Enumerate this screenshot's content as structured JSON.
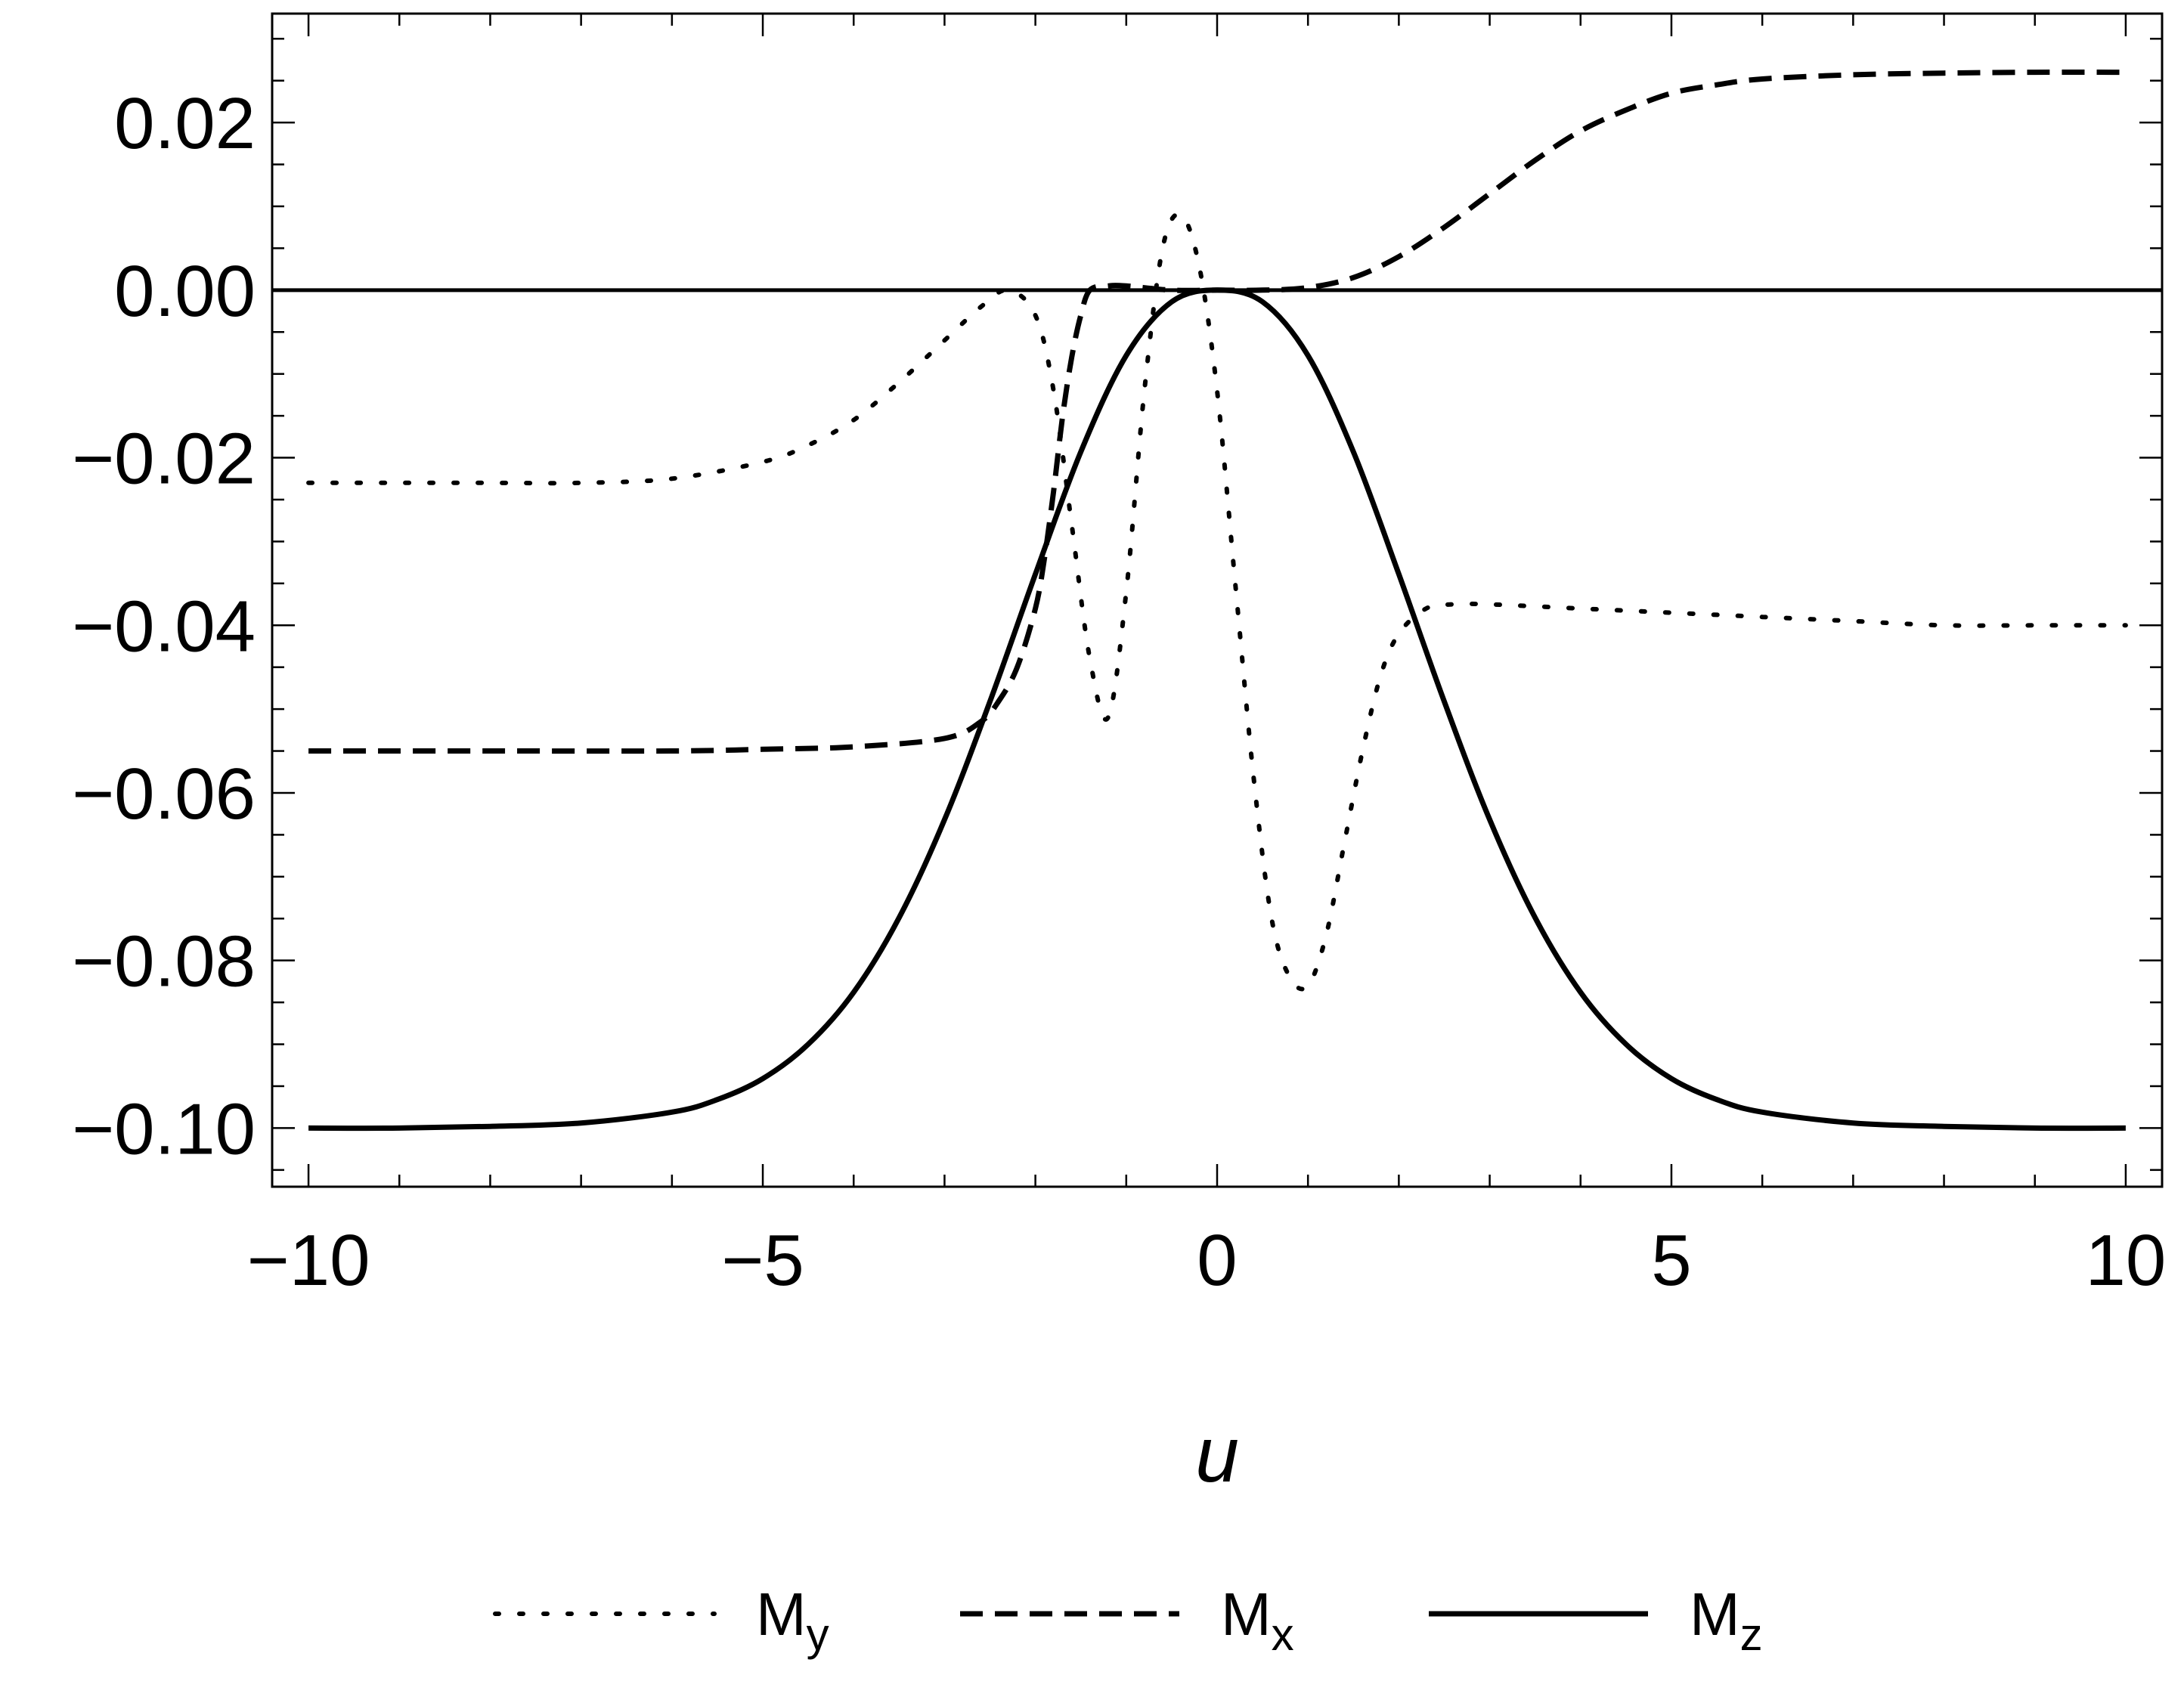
{
  "chart_data": {
    "type": "line",
    "xlabel": "u",
    "ylabel": "",
    "xlim": [
      -10.4,
      10.4
    ],
    "ylim": [
      -0.107,
      0.033
    ],
    "x_ticks": [
      -10,
      -5,
      0,
      5,
      10
    ],
    "x_tick_labels": [
      "−10",
      "−5",
      "0",
      "5",
      "10"
    ],
    "y_ticks": [
      -0.1,
      -0.08,
      -0.06,
      -0.04,
      -0.02,
      0.0,
      0.02
    ],
    "y_tick_labels": [
      "−0.10",
      "−0.08",
      "−0.06",
      "−0.04",
      "−0.02",
      "0.00",
      "0.02"
    ],
    "grid": false,
    "legend_position": "bottom-center",
    "series": [
      {
        "name": "M",
        "subscript": "y",
        "style": "dotted",
        "color": "#000000",
        "x": [
          -10,
          -9,
          -8,
          -7,
          -6,
          -5,
          -4.5,
          -4,
          -3.5,
          -3,
          -2.6,
          -2.3,
          -2.0,
          -1.8,
          -1.6,
          -1.4,
          -1.2,
          -1.0,
          -0.8,
          -0.6,
          -0.4,
          -0.2,
          0.0,
          0.2,
          0.4,
          0.6,
          0.8,
          1.0,
          1.2,
          1.4,
          1.6,
          1.8,
          2.0,
          2.3,
          2.6,
          3.0,
          4,
          5,
          6,
          7,
          8,
          9,
          10
        ],
        "y": [
          -0.023,
          -0.023,
          -0.023,
          -0.023,
          -0.0225,
          -0.0205,
          -0.0185,
          -0.0155,
          -0.011,
          -0.006,
          -0.002,
          0.0,
          -0.003,
          -0.012,
          -0.028,
          -0.044,
          -0.051,
          -0.036,
          -0.012,
          0.005,
          0.009,
          0.003,
          -0.012,
          -0.035,
          -0.058,
          -0.075,
          -0.082,
          -0.083,
          -0.077,
          -0.066,
          -0.055,
          -0.046,
          -0.041,
          -0.038,
          -0.0375,
          -0.0375,
          -0.038,
          -0.0385,
          -0.039,
          -0.0395,
          -0.04,
          -0.04,
          -0.04
        ]
      },
      {
        "name": "M",
        "subscript": "x",
        "style": "dashed",
        "color": "#000000",
        "x": [
          -10,
          -8,
          -6,
          -5,
          -4,
          -3,
          -2.6,
          -2.4,
          -2.2,
          -2.0,
          -1.9,
          -1.8,
          -1.7,
          -1.6,
          -1.5,
          -1.4,
          -1.2,
          -1.0,
          -0.5,
          0,
          0.5,
          1.0,
          1.5,
          2.0,
          2.5,
          3.0,
          3.5,
          4.0,
          4.5,
          5.0,
          5.5,
          6.0,
          7,
          8,
          9,
          10
        ],
        "y": [
          -0.055,
          -0.055,
          -0.055,
          -0.0548,
          -0.0545,
          -0.0535,
          -0.0515,
          -0.049,
          -0.045,
          -0.038,
          -0.032,
          -0.024,
          -0.015,
          -0.008,
          -0.003,
          0.0,
          0.0005,
          0.0005,
          0.0,
          0.0,
          0.0,
          0.0003,
          0.0015,
          0.004,
          0.0075,
          0.0115,
          0.0155,
          0.019,
          0.0215,
          0.0235,
          0.0245,
          0.0252,
          0.0257,
          0.0259,
          0.026,
          0.026
        ]
      },
      {
        "name": "M",
        "subscript": "z",
        "style": "solid",
        "color": "#000000",
        "x": [
          -10,
          -9,
          -8,
          -7,
          -6,
          -5.5,
          -5,
          -4.5,
          -4,
          -3.5,
          -3,
          -2.5,
          -2,
          -1.5,
          -1,
          -0.5,
          0,
          0.5,
          1,
          1.5,
          2,
          2.5,
          3,
          3.5,
          4,
          4.5,
          5,
          5.5,
          6,
          7,
          8,
          9,
          10
        ],
        "y": [
          -0.1,
          -0.1,
          -0.0998,
          -0.0994,
          -0.0981,
          -0.0966,
          -0.0941,
          -0.09,
          -0.0838,
          -0.0749,
          -0.0632,
          -0.0491,
          -0.0339,
          -0.0193,
          -0.0078,
          -0.0014,
          0.0,
          -0.0014,
          -0.0078,
          -0.0193,
          -0.0339,
          -0.0491,
          -0.0632,
          -0.0749,
          -0.0838,
          -0.09,
          -0.0941,
          -0.0966,
          -0.0981,
          -0.0994,
          -0.0998,
          -0.1,
          -0.1
        ]
      }
    ],
    "reference_line": {
      "y": 0.0,
      "style": "solid",
      "color": "#000000"
    }
  }
}
